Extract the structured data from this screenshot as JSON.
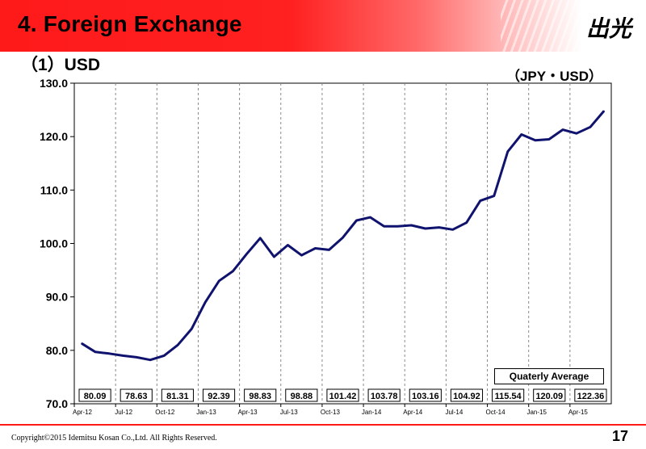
{
  "header": {
    "title": "4. Foreign Exchange",
    "logo_text": "出光"
  },
  "subtitle": "（1）USD",
  "footer": {
    "copyright": "Copyright©2015 Idemitsu Kosan Co.,Ltd. All Rights Reserved.",
    "page_number": "17"
  },
  "chart_data": {
    "type": "line",
    "title": "",
    "unit_label": "（JPY・USD）",
    "ylim": [
      70,
      130
    ],
    "y_ticks": [
      "70.0",
      "80.0",
      "90.0",
      "100.0",
      "110.0",
      "120.0",
      "130.0"
    ],
    "x_tick_labels": [
      "Apr-12",
      "Jul-12",
      "Oct-12",
      "Jan-13",
      "Apr-13",
      "Jul-13",
      "Oct-13",
      "Jan-14",
      "Apr-14",
      "Jul-14",
      "Oct-14",
      "Jan-15",
      "Apr-15"
    ],
    "series": [
      {
        "values": [
          81.3,
          79.7,
          79.4,
          79.0,
          78.7,
          78.2,
          79.0,
          81.0,
          84.0,
          89.0,
          93.0,
          94.8,
          98.0,
          101.0,
          97.5,
          99.7,
          97.8,
          99.1,
          98.8,
          101.1,
          104.3,
          104.9,
          103.2,
          103.2,
          103.4,
          102.8,
          103.0,
          102.6,
          103.9,
          108.0,
          108.9,
          117.2,
          120.4,
          119.3,
          119.5,
          121.3,
          120.6,
          121.8,
          124.8
        ]
      }
    ],
    "quarterly_average": {
      "label": "Quaterly Average",
      "values": [
        "80.09",
        "78.63",
        "81.31",
        "92.39",
        "98.83",
        "98.88",
        "101.42",
        "103.78",
        "103.16",
        "104.92",
        "115.54",
        "120.09",
        "122.36"
      ]
    },
    "line_color": "#10136e",
    "grid": "vertical-dashed"
  }
}
